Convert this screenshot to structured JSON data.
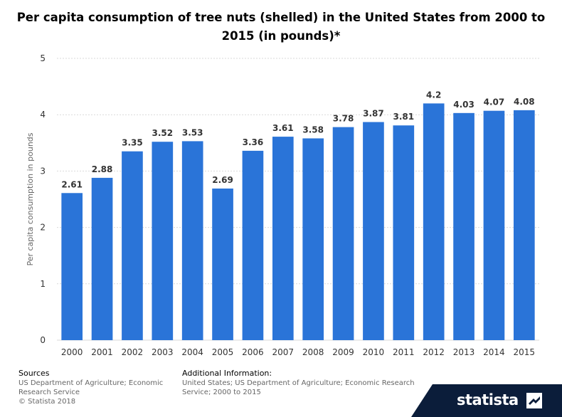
{
  "page": {
    "sources_label": "Sources",
    "sources_text": "US Department of Agriculture; Economic Research Service",
    "copyright": "© Statista 2018",
    "additional_label": "Additional Information:",
    "additional_text": "United States; US Department of Agriculture; Economic Research Service; 2000 to 2015",
    "brand": "statista"
  },
  "colors": {
    "bar": "#2a74d8",
    "grid": "#d9d9d9",
    "brand_bg": "#0b1d3a"
  },
  "chart_data": {
    "type": "bar",
    "title": "Per capita consumption of tree nuts (shelled) in the United States from 2000 to 2015 (in pounds)*",
    "xlabel": "",
    "ylabel": "Per capita consumption in pounds",
    "categories": [
      "2000",
      "2001",
      "2002",
      "2003",
      "2004",
      "2005",
      "2006",
      "2007",
      "2008",
      "2009",
      "2010",
      "2011",
      "2012",
      "2013",
      "2014",
      "2015"
    ],
    "values": [
      2.61,
      2.88,
      3.35,
      3.52,
      3.53,
      2.69,
      3.36,
      3.61,
      3.58,
      3.78,
      3.87,
      3.81,
      4.2,
      4.03,
      4.07,
      4.08
    ],
    "value_labels": [
      "2.61",
      "2.88",
      "3.35",
      "3.52",
      "3.53",
      "2.69",
      "3.36",
      "3.61",
      "3.58",
      "3.78",
      "3.87",
      "3.81",
      "4.2",
      "4.03",
      "4.07",
      "4.08"
    ],
    "ylim": [
      0,
      5
    ],
    "yticks": [
      "0",
      "1",
      "2",
      "3",
      "4",
      "5"
    ],
    "grid": true
  }
}
